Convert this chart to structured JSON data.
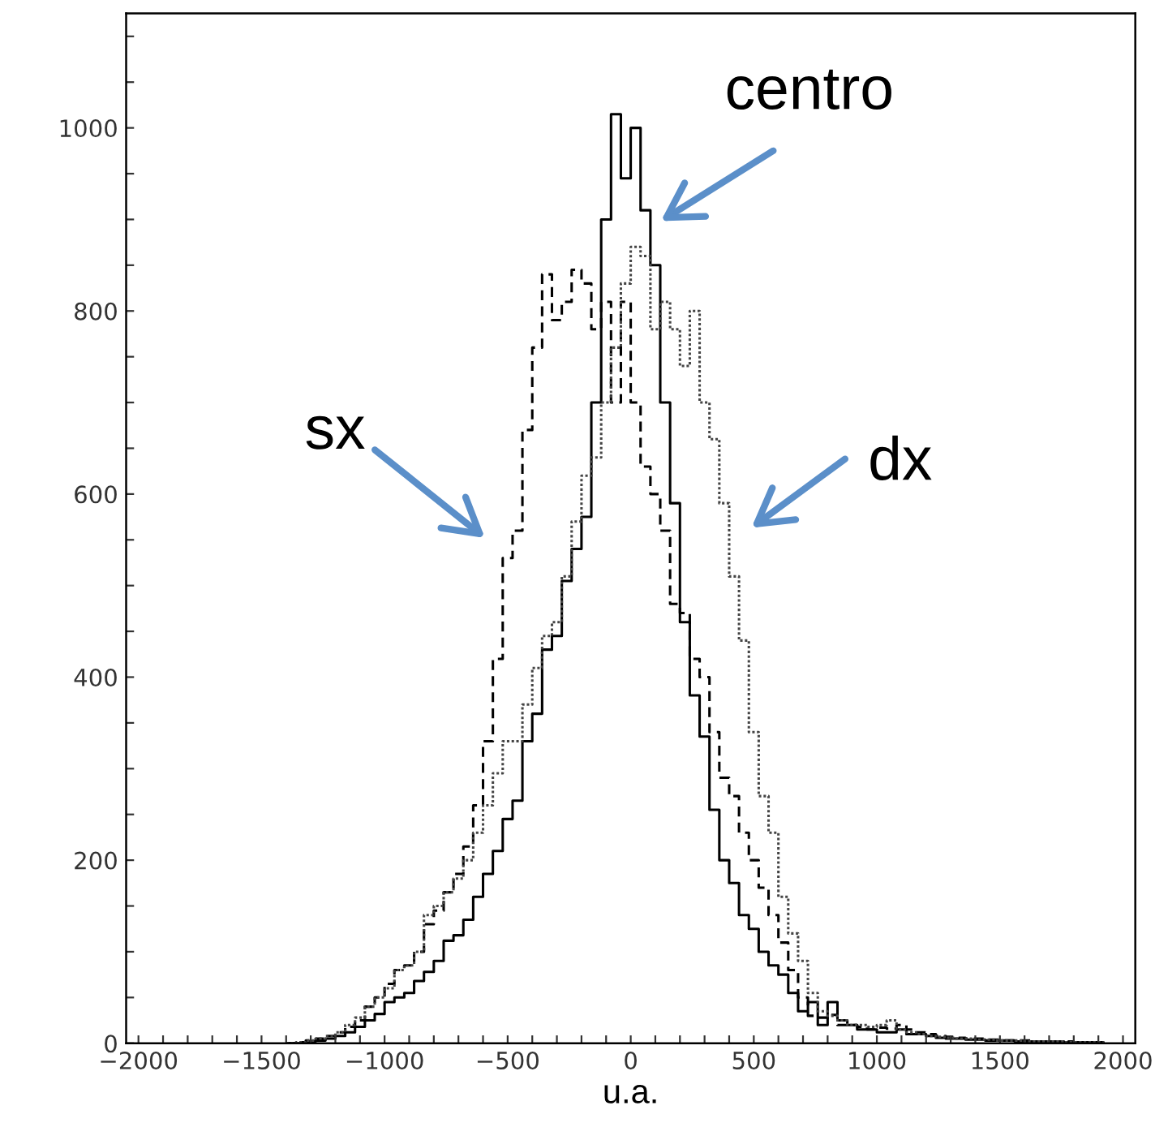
{
  "chart_data": {
    "type": "histogram",
    "xlabel": "u.a.",
    "bins": [
      -1400,
      -1360,
      -1320,
      -1280,
      -1240,
      -1200,
      -1160,
      -1120,
      -1080,
      -1040,
      -1000,
      -960,
      -920,
      -880,
      -840,
      -800,
      -760,
      -720,
      -680,
      -640,
      -600,
      -560,
      -520,
      -480,
      -440,
      -400,
      -360,
      -320,
      -280,
      -240,
      -200,
      -160,
      -120,
      -80,
      -40,
      0,
      40,
      80,
      120,
      160,
      200,
      240,
      280,
      320,
      360,
      400,
      440,
      480,
      520,
      560,
      600,
      640,
      680,
      720,
      760,
      800,
      840,
      880,
      920,
      960,
      1000,
      1040,
      1080,
      1120,
      1160,
      1200,
      1240,
      1280,
      1320,
      1360,
      1400,
      1440,
      1480,
      1520,
      1560,
      1600,
      1640,
      1680,
      1720,
      1760,
      1800,
      1840,
      1880,
      1920
    ],
    "series": [
      {
        "color": "#000000",
        "line_style": "solid",
        "values": [
          0,
          0,
          2,
          3,
          5,
          8,
          12,
          18,
          25,
          32,
          45,
          50,
          55,
          68,
          78,
          90,
          112,
          118,
          135,
          160,
          185,
          210,
          245,
          265,
          330,
          360,
          430,
          445,
          505,
          540,
          575,
          700,
          900,
          1015,
          945,
          1000,
          910,
          850,
          700,
          590,
          460,
          380,
          335,
          255,
          200,
          175,
          140,
          125,
          100,
          85,
          75,
          55,
          35,
          45,
          20,
          45,
          25,
          20,
          15,
          15,
          12,
          12,
          15,
          10,
          10,
          8,
          6,
          5,
          5,
          4,
          4,
          3,
          3,
          3,
          2,
          2,
          2,
          2,
          2,
          1,
          1,
          1,
          1
        ]
      },
      {
        "color": "#000000",
        "line_style": "dashed",
        "values": [
          0,
          1,
          3,
          5,
          8,
          12,
          18,
          25,
          40,
          50,
          65,
          80,
          85,
          100,
          130,
          145,
          165,
          185,
          215,
          260,
          330,
          420,
          530,
          560,
          670,
          760,
          840,
          790,
          810,
          845,
          830,
          780,
          810,
          700,
          810,
          700,
          630,
          600,
          560,
          480,
          470,
          420,
          400,
          340,
          290,
          270,
          230,
          200,
          170,
          140,
          110,
          80,
          50,
          30,
          28,
          31,
          20,
          20,
          18,
          15,
          17,
          16,
          20,
          15,
          12,
          10,
          8,
          7,
          6,
          5,
          5,
          4,
          4,
          3,
          3,
          3,
          2,
          2,
          2,
          2,
          1,
          1,
          1
        ]
      },
      {
        "color": "#444444",
        "line_style": "dotted",
        "values": [
          0,
          1,
          3,
          5,
          8,
          12,
          20,
          28,
          40,
          50,
          60,
          80,
          85,
          100,
          140,
          150,
          165,
          180,
          200,
          230,
          260,
          295,
          330,
          330,
          370,
          410,
          445,
          460,
          510,
          570,
          620,
          640,
          700,
          760,
          830,
          870,
          860,
          780,
          810,
          780,
          740,
          800,
          700,
          660,
          590,
          510,
          440,
          340,
          270,
          230,
          160,
          120,
          90,
          55,
          35,
          30,
          25,
          20,
          20,
          18,
          20,
          25,
          15,
          12,
          10,
          8,
          7,
          6,
          5,
          5,
          4,
          4,
          3,
          3,
          3,
          2,
          2,
          2,
          2,
          1,
          1,
          1,
          1
        ]
      }
    ],
    "annotations": [
      "centro",
      "sx",
      "dx"
    ],
    "xlim": [
      -2050,
      2050
    ],
    "xticks": [
      {
        "value": -2000,
        "label": "−2000"
      },
      {
        "value": -1900,
        "label": null
      },
      {
        "value": -1800,
        "label": null
      },
      {
        "value": -1700,
        "label": null
      },
      {
        "value": -1600,
        "label": null
      },
      {
        "value": -1500,
        "label": "−1500"
      },
      {
        "value": -1400,
        "label": null
      },
      {
        "value": -1300,
        "label": null
      },
      {
        "value": -1200,
        "label": null
      },
      {
        "value": -1100,
        "label": null
      },
      {
        "value": -1000,
        "label": "−1000"
      },
      {
        "value": -900,
        "label": null
      },
      {
        "value": -800,
        "label": null
      },
      {
        "value": -700,
        "label": null
      },
      {
        "value": -600,
        "label": null
      },
      {
        "value": -500,
        "label": "−500"
      },
      {
        "value": -400,
        "label": null
      },
      {
        "value": -300,
        "label": null
      },
      {
        "value": -200,
        "label": null
      },
      {
        "value": -100,
        "label": null
      },
      0,
      {
        "value": 100,
        "label": null
      },
      {
        "value": 200,
        "label": null
      },
      {
        "value": 300,
        "label": null
      },
      {
        "value": 400,
        "label": null
      },
      500,
      {
        "value": 600,
        "label": null
      },
      {
        "value": 700,
        "label": null
      },
      {
        "value": 800,
        "label": null
      },
      {
        "value": 900,
        "label": null
      },
      1000,
      {
        "value": 1100,
        "label": null
      },
      {
        "value": 1200,
        "label": null
      },
      {
        "value": 1300,
        "label": null
      },
      {
        "value": 1400,
        "label": null
      },
      1500,
      {
        "value": 1600,
        "label": null
      },
      {
        "value": 1700,
        "label": null
      },
      {
        "value": 1800,
        "label": null
      },
      {
        "value": 1900,
        "label": null
      },
      2000
    ],
    "ylim": [
      0,
      1125
    ],
    "yticks": [
      0,
      {
        "value": 50,
        "label": null
      },
      {
        "value": 100,
        "label": null
      },
      {
        "value": 150,
        "label": null
      },
      200,
      {
        "value": 250,
        "label": null
      },
      {
        "value": 300,
        "label": null
      },
      {
        "value": 350,
        "label": null
      },
      400,
      {
        "value": 450,
        "label": null
      },
      {
        "value": 500,
        "label": null
      },
      {
        "value": 550,
        "label": null
      },
      600,
      {
        "value": 650,
        "label": null
      },
      {
        "value": 700,
        "label": null
      },
      {
        "value": 750,
        "label": null
      },
      800,
      {
        "value": 850,
        "label": null
      },
      {
        "value": 900,
        "label": null
      },
      {
        "value": 950,
        "label": null
      },
      1000,
      {
        "value": 1050,
        "label": null
      },
      {
        "value": 1100,
        "label": null
      }
    ],
    "grid": false,
    "legend": false
  }
}
